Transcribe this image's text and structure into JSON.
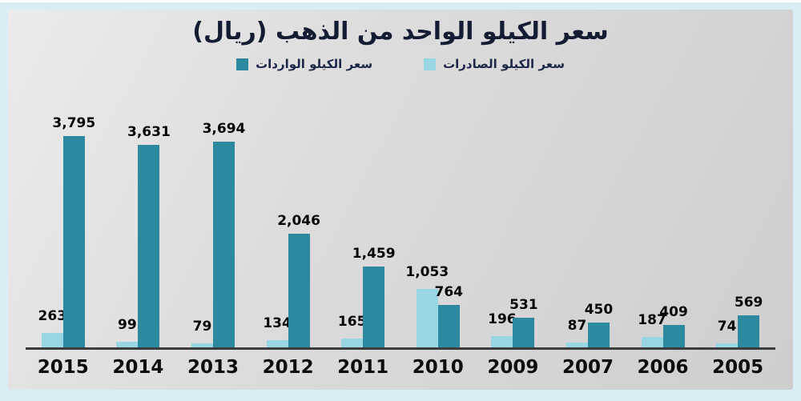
{
  "title": "سعر الكيلو الواحد من الذهب (ريال)",
  "chart_data": {
    "type": "bar",
    "title": "سعر الكيلو الواحد من الذهب (ريال)",
    "direction": "rtl",
    "categories": [
      "2015",
      "2014",
      "2013",
      "2012",
      "2011",
      "2010",
      "2009",
      "2007",
      "2006",
      "2005"
    ],
    "series": [
      {
        "name": "سعر الكيلو الصادرات",
        "role": "exports",
        "color": "#99d6e4",
        "values": [
          263,
          99,
          79,
          134,
          165,
          1053,
          196,
          87,
          187,
          74
        ]
      },
      {
        "name": "سعر الكيلو الواردات",
        "role": "imports",
        "color": "#2d89a0",
        "values": [
          3795,
          3631,
          3694,
          2046,
          1459,
          764,
          531,
          450,
          409,
          569
        ]
      }
    ],
    "ylim": [
      0,
      3795
    ],
    "grid": false,
    "legend_position": "top-center",
    "data_labels": true,
    "number_format": "#,###"
  },
  "colors": {
    "frame_background": "#d9edf5",
    "panel_background": "#dcdcdc",
    "axis_line": "#3c3c3c",
    "title_text": "#141c33",
    "label_text": "#060606",
    "exports_bar": "#99d6e4",
    "imports_bar": "#2d89a0"
  }
}
